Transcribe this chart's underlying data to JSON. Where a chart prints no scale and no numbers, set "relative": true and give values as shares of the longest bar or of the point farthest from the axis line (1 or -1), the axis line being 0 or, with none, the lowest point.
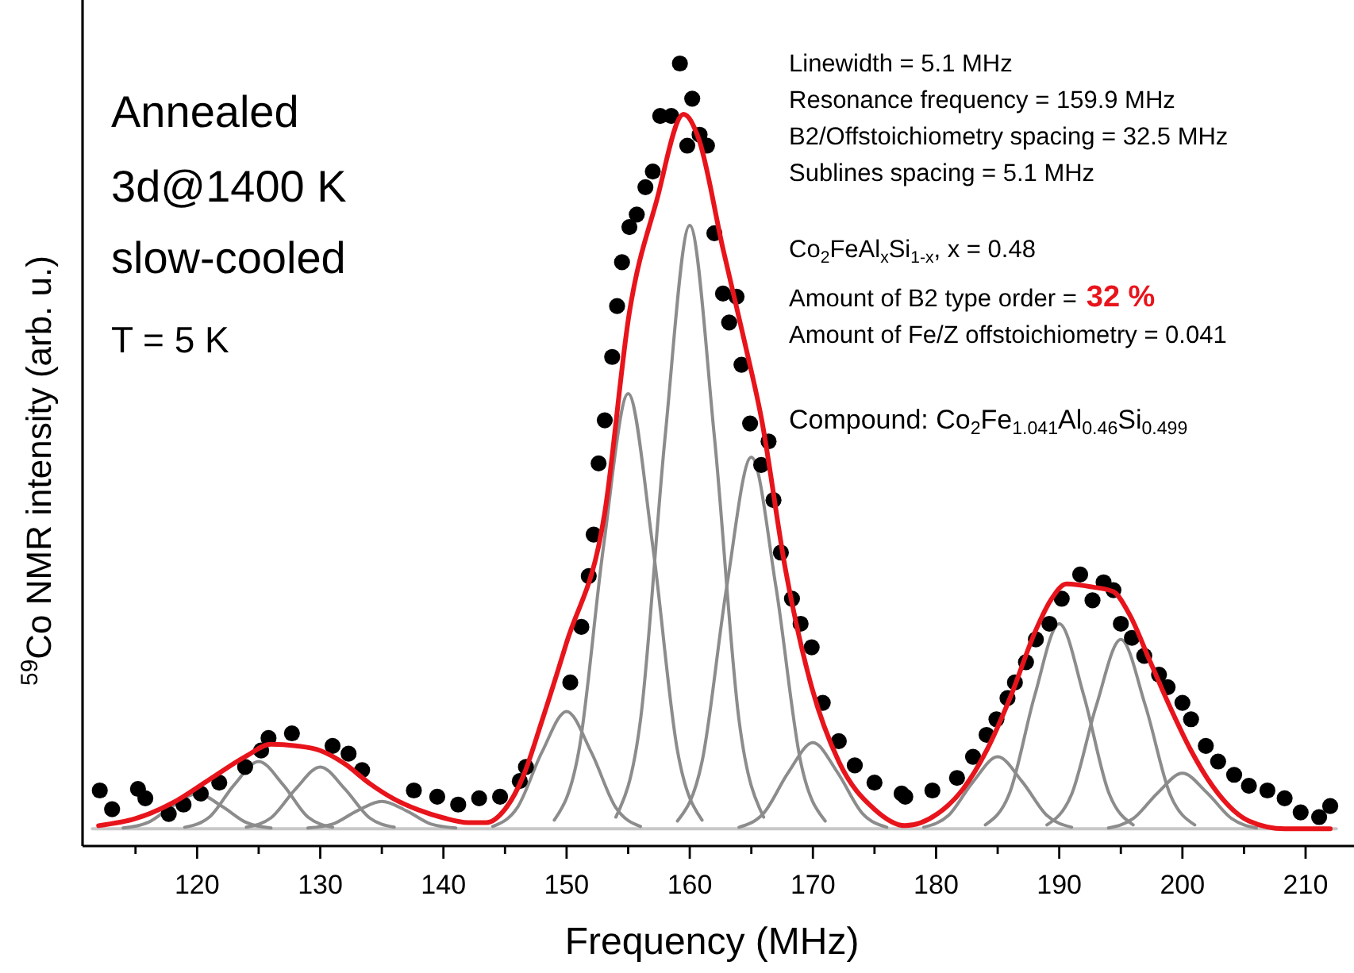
{
  "chart_data": {
    "type": "scatter",
    "relative": true,
    "xlabel": "Frequency (MHz)",
    "ylabel": "$^{59}$Co NMR intensity (arb. u.)",
    "xlim": [
      110.7,
      212.9
    ],
    "xticks": [
      {
        "value": 115,
        "label": null
      },
      120,
      {
        "value": 125,
        "label": null
      },
      130,
      {
        "value": 135,
        "label": null
      },
      140,
      {
        "value": 145,
        "label": null
      },
      150,
      {
        "value": 155,
        "label": null
      },
      160,
      {
        "value": 165,
        "label": null
      },
      170,
      {
        "value": 175,
        "label": null
      },
      180,
      {
        "value": 185,
        "label": null
      },
      190,
      {
        "value": 195,
        "label": null
      },
      200,
      {
        "value": 205,
        "label": null
      },
      210
    ],
    "grid": false,
    "annotations": [
      "Annealed",
      "3d@1400 K",
      "slow-cooled",
      "T = 5 K",
      "Linewidth = 5.1 MHz",
      "Resonance frequency = 159.9 MHz",
      "B2/Offstoichiometry spacing = 32.5 MHz",
      "Sublines spacing = 5.1 MHz",
      "Co$_{2}$FeAl$_{x}$Si$_{1-x}$, x = 0.48",
      "Amount of B2 type order =",
      "32 %",
      "Amount of Fe/Z offstoichiometry = 0.041",
      "Compound: Co$_{2}$Fe$_{1.041}$Al$_{0.46}$Si$_{0.499}$"
    ],
    "series": [
      {
        "type": "line",
        "color": "#c8c8c8",
        "line_style": "solid",
        "marker": "none",
        "x": [
          111.5,
          212.5
        ],
        "values": [
          0.022,
          0.022
        ]
      },
      {
        "type": "line",
        "color": "#8c8c8c",
        "line_style": "solid",
        "marker": "none",
        "x": [
          114,
          116,
          118,
          120,
          122,
          124,
          126
        ],
        "values": [
          0.023,
          0.03,
          0.051,
          0.067,
          0.051,
          0.03,
          0.023
        ]
      },
      {
        "type": "line",
        "color": "#8c8c8c",
        "line_style": "solid",
        "marker": "none",
        "x": [
          119,
          121,
          123,
          125,
          127,
          129,
          131
        ],
        "values": [
          0.024,
          0.037,
          0.078,
          0.108,
          0.078,
          0.037,
          0.024
        ]
      },
      {
        "type": "line",
        "color": "#8c8c8c",
        "line_style": "solid",
        "marker": "none",
        "x": [
          124,
          126,
          128,
          130,
          132,
          134,
          136
        ],
        "values": [
          0.024,
          0.036,
          0.073,
          0.101,
          0.073,
          0.036,
          0.024
        ]
      },
      {
        "type": "line",
        "color": "#8c8c8c",
        "line_style": "solid",
        "marker": "none",
        "x": [
          129,
          131,
          133,
          135,
          137,
          139,
          141
        ],
        "values": [
          0.023,
          0.028,
          0.045,
          0.057,
          0.045,
          0.028,
          0.023
        ]
      },
      {
        "type": "line",
        "color": "#8c8c8c",
        "line_style": "solid",
        "marker": "none",
        "x": [
          144,
          146,
          148,
          150,
          152,
          154,
          156
        ],
        "values": [
          0.025,
          0.049,
          0.12,
          0.172,
          0.12,
          0.049,
          0.025
        ]
      },
      {
        "type": "line",
        "color": "#8c8c8c",
        "line_style": "solid",
        "marker": "none",
        "x": [
          149,
          151,
          153,
          155,
          157,
          159,
          161
        ],
        "values": [
          0.033,
          0.122,
          0.383,
          0.578,
          0.383,
          0.122,
          0.033
        ]
      },
      {
        "type": "line",
        "color": "#8c8c8c",
        "line_style": "solid",
        "marker": "none",
        "x": [
          154,
          156,
          158,
          160,
          162,
          164,
          166
        ],
        "values": [
          0.037,
          0.161,
          0.523,
          0.793,
          0.523,
          0.161,
          0.037
        ]
      },
      {
        "type": "line",
        "color": "#8c8c8c",
        "line_style": "solid",
        "marker": "none",
        "x": [
          159,
          161,
          163,
          165,
          167,
          169,
          171
        ],
        "values": [
          0.032,
          0.108,
          0.331,
          0.497,
          0.331,
          0.108,
          0.032
        ]
      },
      {
        "type": "line",
        "color": "#8c8c8c",
        "line_style": "solid",
        "marker": "none",
        "x": [
          164,
          166,
          168,
          170,
          172,
          174,
          176
        ],
        "values": [
          0.024,
          0.042,
          0.094,
          0.132,
          0.094,
          0.042,
          0.024
        ]
      },
      {
        "type": "line",
        "color": "#8c8c8c",
        "line_style": "solid",
        "marker": "none",
        "x": [
          179,
          181,
          183,
          185,
          187,
          189,
          191
        ],
        "values": [
          0.024,
          0.039,
          0.082,
          0.114,
          0.082,
          0.039,
          0.024
        ]
      },
      {
        "type": "line",
        "color": "#8c8c8c",
        "line_style": "solid",
        "marker": "none",
        "x": [
          184,
          186,
          188,
          190,
          192,
          194,
          196
        ],
        "values": [
          0.027,
          0.069,
          0.192,
          0.284,
          0.192,
          0.069,
          0.027
        ]
      },
      {
        "type": "line",
        "color": "#8c8c8c",
        "line_style": "solid",
        "marker": "none",
        "x": [
          189,
          191,
          193,
          195,
          197,
          199,
          201
        ],
        "values": [
          0.027,
          0.066,
          0.179,
          0.264,
          0.179,
          0.066,
          0.027
        ]
      },
      {
        "type": "line",
        "color": "#8c8c8c",
        "line_style": "solid",
        "marker": "none",
        "x": [
          194,
          196,
          198,
          200,
          202,
          204,
          206
        ],
        "values": [
          0.023,
          0.035,
          0.068,
          0.093,
          0.068,
          0.035,
          0.023
        ]
      },
      {
        "color": "#000000",
        "marker": "circle",
        "x": [
          112.1,
          113.1,
          115.2,
          115.8,
          117.7,
          118.9,
          120.3,
          121.8,
          123.9,
          125.2,
          125.8,
          127.7,
          131.0,
          132.3,
          133.4,
          137.6,
          139.5,
          141.2,
          142.9,
          144.6,
          146.2,
          146.7,
          150.3,
          151.2,
          151.8,
          152.2,
          152.6,
          153.1,
          153.7,
          154.1,
          154.5,
          155.1,
          155.7,
          156.4,
          157.0,
          157.6,
          158.5,
          159.2,
          159.8,
          160.2,
          160.8,
          161.4,
          162.0,
          162.7,
          163.2,
          163.8,
          164.2,
          164.9,
          165.8,
          166.4,
          166.8,
          167.4,
          168.3,
          169.0,
          169.9,
          170.8,
          172.1,
          173.4,
          175.0,
          177.2,
          177.5,
          179.7,
          181.7,
          183.0,
          184.1,
          184.9,
          185.8,
          186.4,
          187.3,
          188.1,
          189.2,
          190.2,
          191.7,
          192.7,
          193.6,
          194.4,
          195.0,
          195.9,
          196.9,
          198.1,
          198.8,
          200.0,
          200.7,
          201.9,
          202.9,
          204.2,
          205.4,
          206.9,
          208.3,
          209.6,
          211.1,
          212.0
        ],
        "values": [
          0.071,
          0.047,
          0.073,
          0.061,
          0.041,
          0.053,
          0.067,
          0.081,
          0.101,
          0.122,
          0.138,
          0.144,
          0.128,
          0.118,
          0.097,
          0.071,
          0.063,
          0.053,
          0.061,
          0.063,
          0.083,
          0.101,
          0.209,
          0.28,
          0.345,
          0.398,
          0.489,
          0.544,
          0.625,
          0.69,
          0.746,
          0.791,
          0.807,
          0.842,
          0.862,
          0.933,
          0.933,
          1.0,
          0.895,
          0.955,
          0.909,
          0.895,
          0.783,
          0.706,
          0.669,
          0.702,
          0.615,
          0.54,
          0.487,
          0.517,
          0.442,
          0.375,
          0.316,
          0.284,
          0.254,
          0.183,
          0.134,
          0.103,
          0.081,
          0.067,
          0.063,
          0.071,
          0.087,
          0.114,
          0.142,
          0.162,
          0.189,
          0.209,
          0.235,
          0.264,
          0.284,
          0.316,
          0.347,
          0.314,
          0.337,
          0.327,
          0.284,
          0.266,
          0.243,
          0.219,
          0.203,
          0.183,
          0.162,
          0.128,
          0.108,
          0.091,
          0.077,
          0.071,
          0.061,
          0.043,
          0.037,
          0.051
        ]
      },
      {
        "type": "line",
        "color": "#e8141b",
        "line_style": "solid",
        "marker": "none",
        "x": [
          112,
          115,
          118,
          121,
          124,
          126,
          128,
          130,
          132,
          134,
          136,
          138,
          140,
          142,
          143.5,
          145,
          146.5,
          148,
          150,
          153.1,
          155.1,
          157.3,
          159.5,
          160.7,
          162.7,
          164.5,
          165.8,
          167.8,
          169.9,
          172.1,
          175,
          177.5,
          180.1,
          182.2,
          184.1,
          186,
          188.1,
          189.3,
          190.6,
          192.7,
          194.4,
          195.7,
          197.4,
          199.1,
          200.7,
          202.9,
          205.4,
          208.3,
          212
        ],
        "values": [
          0.026,
          0.035,
          0.055,
          0.085,
          0.115,
          0.13,
          0.128,
          0.122,
          0.105,
          0.08,
          0.06,
          0.046,
          0.036,
          0.03,
          0.03,
          0.047,
          0.09,
          0.16,
          0.26,
          0.426,
          0.682,
          0.824,
          0.935,
          0.905,
          0.763,
          0.641,
          0.548,
          0.351,
          0.203,
          0.108,
          0.047,
          0.026,
          0.041,
          0.073,
          0.122,
          0.189,
          0.276,
          0.314,
          0.335,
          0.331,
          0.325,
          0.296,
          0.235,
          0.174,
          0.122,
          0.067,
          0.032,
          0.022,
          0.022
        ]
      }
    ]
  }
}
